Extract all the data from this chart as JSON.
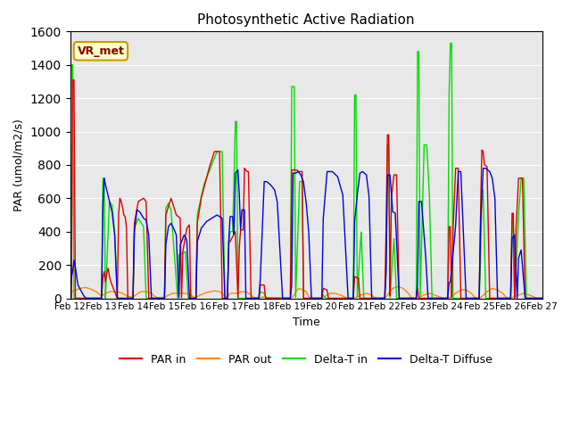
{
  "title": "Photosynthetic Active Radiation",
  "ylabel": "PAR (umol/m2/s)",
  "xlabel": "Time",
  "ylim": [
    0,
    1600
  ],
  "yticks": [
    0,
    200,
    400,
    600,
    800,
    1000,
    1200,
    1400,
    1600
  ],
  "xtick_positions": [
    0,
    24,
    48,
    72,
    96,
    120,
    144,
    168,
    192,
    216,
    240,
    264,
    288,
    312,
    336,
    360
  ],
  "xtick_labels": [
    "Feb 12",
    "Feb 13",
    "Feb 14",
    "Feb 15",
    "Feb 16",
    "Feb 17",
    "Feb 18",
    "Feb 19",
    "Feb 20",
    "Feb 21",
    "Feb 22",
    "Feb 23",
    "Feb 24",
    "Feb 25",
    "Feb 26",
    "Feb 27"
  ],
  "line_colors": {
    "PAR in": "#dd0000",
    "PAR out": "#ff8800",
    "Delta-T in": "#00dd00",
    "Delta-T Diffuse": "#0000dd"
  },
  "background_color": "#e8e8e8",
  "annotation_text": "VR_met",
  "annotation_color": "#8b0000",
  "annotation_bg": "#ffffcc",
  "annotation_border": "#cc9900"
}
